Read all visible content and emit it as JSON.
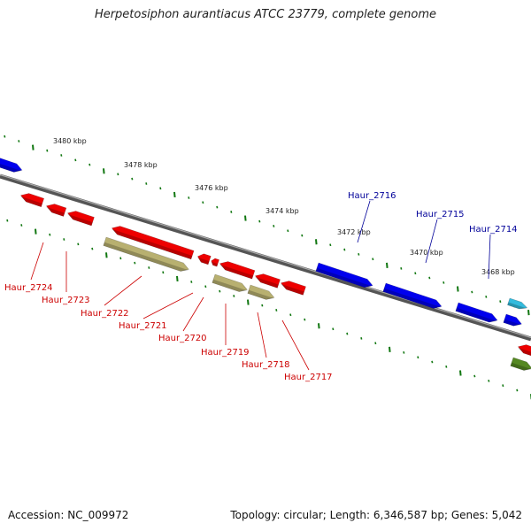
{
  "title": "Herpetosiphon aurantiacus ATCC 23779, complete genome",
  "footer": {
    "accession": "Accession: NC_009972",
    "info": "Topology: circular; Length: 6,346,587 bp; Genes: 5,042"
  },
  "colors": {
    "forward_gene": "#0000ee",
    "reverse_gene": "#ee0000",
    "pseudo_gene": "#b8b070",
    "rna_gene": "#33bbdd",
    "other_gene": "#558822",
    "backbone": "#777777",
    "tick": "#117711",
    "reverse_label": "#cc0000",
    "forward_label": "#000099"
  },
  "scale": {
    "unit": "kbp",
    "ticks": [
      "3480 kbp",
      "3478 kbp",
      "3476 kbp",
      "3474 kbp",
      "3472 kbp",
      "3470 kbp",
      "3468 kbp"
    ]
  },
  "genes": {
    "forward_labels": [
      "Haur_2716",
      "Haur_2715",
      "Haur_2714"
    ],
    "reverse_labels": [
      "Haur_2724",
      "Haur_2723",
      "Haur_2722",
      "Haur_2721",
      "Haur_2720",
      "Haur_2719",
      "Haur_2718",
      "Haur_2717"
    ]
  }
}
